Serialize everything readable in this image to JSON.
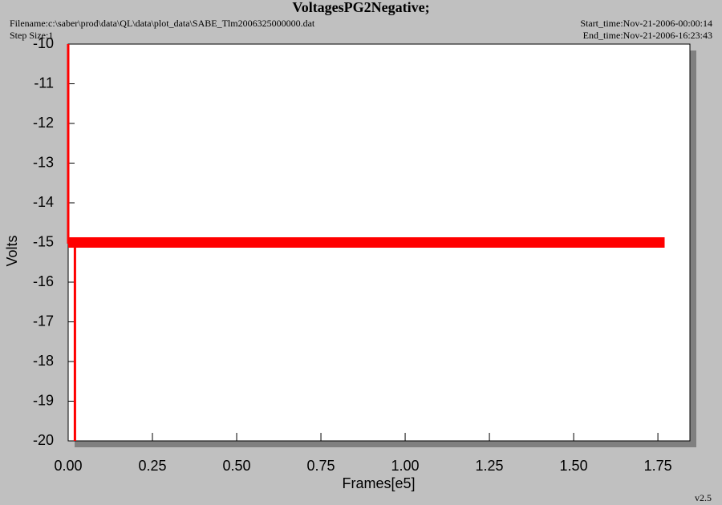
{
  "chart_data": {
    "type": "line",
    "title": "VoltagesPG2Negative;",
    "filename": "Filename:c:\\saber\\prod\\data\\QL\\data\\plot_data\\SABE_Tlm2006325000000.dat",
    "step_size": "Step Size:1",
    "start_time": "Start_time:Nov-21-2006-00:00:14",
    "end_time": "End_time:Nov-21-2006-16:23:43",
    "version": "v2.5",
    "x_label": "Frames[e5]",
    "y_label": "Volts",
    "xlim": [
      0,
      1.845
    ],
    "ylim": [
      -20,
      -10
    ],
    "xticks": [
      {
        "value": 0,
        "label": "0.00"
      },
      0.25,
      {
        "value": 0.5,
        "label": "0.50"
      },
      0.75,
      {
        "value": 1,
        "label": "1.00"
      },
      1.25,
      {
        "value": 1.5,
        "label": "1.50"
      },
      1.75
    ],
    "yticks": [
      -10,
      -11,
      -12,
      -13,
      -14,
      -15,
      -16,
      -17,
      -18,
      -19,
      -20
    ],
    "series": [
      {
        "color": "#ff0000",
        "x": [
          0,
          0,
          0.02,
          0.02,
          0.02
        ],
        "values": [
          -10,
          -15,
          -15,
          -20,
          -15
        ]
      },
      {
        "color": "#ff0000",
        "x": [
          0,
          1.77
        ],
        "values": [
          -15,
          -15
        ]
      }
    ]
  }
}
